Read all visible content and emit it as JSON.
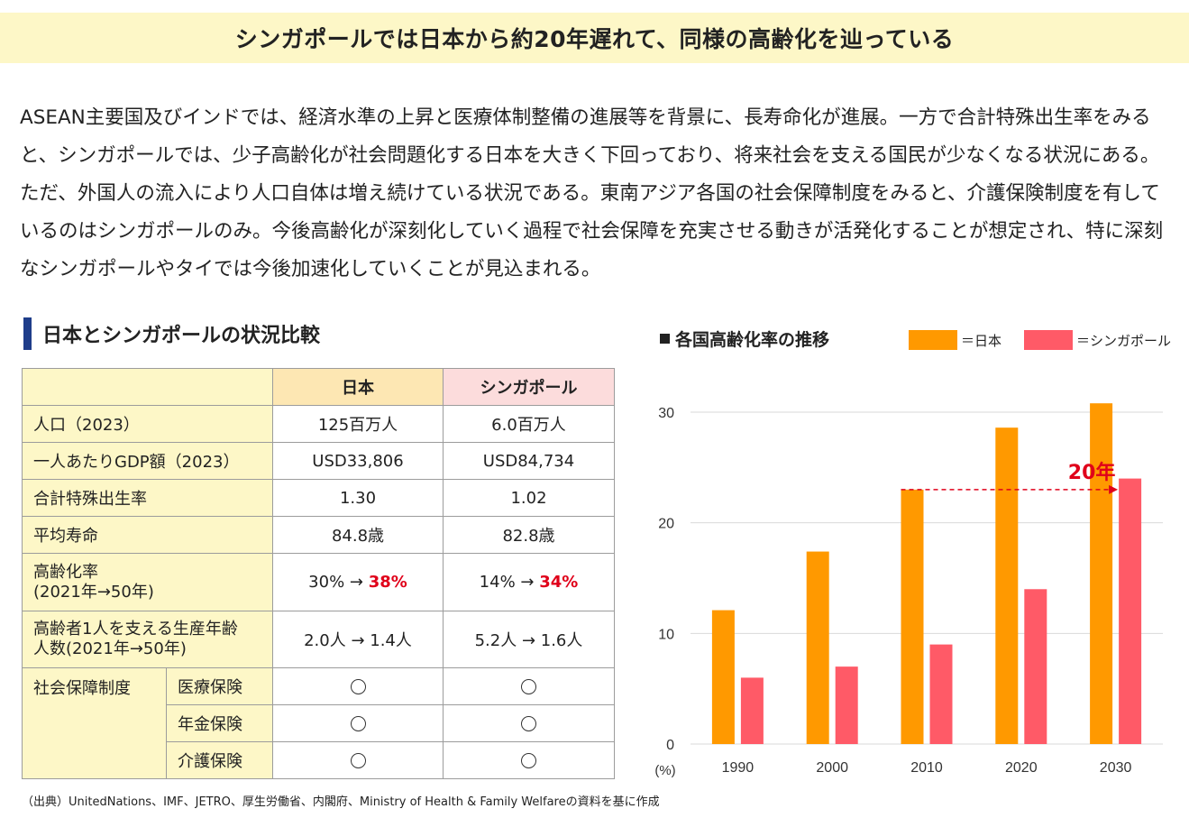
{
  "header": {
    "title": "シンガポールでは日本から約20年遅れて、同様の高齢化を辿っている"
  },
  "intro_text": "ASEAN主要国及びインドでは、経済水準の上昇と医療体制整備の進展等を背景に、長寿命化が進展。一方で合計特殊出生率をみると、シンガポールでは、少子高齢化が社会問題化する日本を大きく下回っており、将来社会を支える国民が少なくなる状況にある。ただ、外国人の流入により人口自体は増え続けている状況である。東南アジア各国の社会保障制度をみると、介護保険制度を有しているのはシンガポールのみ。今後高齢化が深刻化していく過程で社会保障を充実させる動きが活発化することが想定され、特に深刻なシンガポールやタイでは今後加速化していくことが見込まれる。",
  "table": {
    "section_title": "日本とシンガポールの状況比較",
    "col_japan": "日本",
    "col_singapore": "シンガポール",
    "rows": [
      {
        "label": "人口（2023）",
        "japan": "125百万人",
        "singapore": "6.0百万人"
      },
      {
        "label": "一人あたりGDP額（2023）",
        "japan": "USD33,806",
        "singapore": "USD84,734"
      },
      {
        "label": "合計特殊出生率",
        "japan": "1.30",
        "singapore": "1.02"
      },
      {
        "label": "平均寿命",
        "japan": "84.8歳",
        "singapore": "82.8歳"
      }
    ],
    "aging_row": {
      "label_line1": "高齢化率",
      "label_line2": "(2021年→50年)",
      "japan_from": "30% →",
      "japan_to": "38%",
      "singapore_from": "14% →",
      "singapore_to": "34%"
    },
    "support_row": {
      "label_line1": "高齢者1人を支える生産年齢",
      "label_line2": "人数(2021年→50年)",
      "japan": "2.0人 → 1.4人",
      "singapore": "5.2人 → 1.6人"
    },
    "social_security": {
      "label": "社会保障制度",
      "items": [
        {
          "label": "医療保険",
          "japan": "yes",
          "singapore": "yes"
        },
        {
          "label": "年金保険",
          "japan": "yes",
          "singapore": "yes"
        },
        {
          "label": "介護保険",
          "japan": "yes",
          "singapore": "yes"
        }
      ]
    }
  },
  "source_note": "（出典）UnitedNations、IMF、JETRO、厚生労働省、内閣府、Ministry of Health & Family Welfareの資料を基に作成",
  "chart_data": {
    "type": "bar",
    "title": "各国高齢化率の推移",
    "categories": [
      "1990",
      "2000",
      "2010",
      "2020",
      "2030"
    ],
    "series": [
      {
        "name": "＝日本",
        "color": "#ff9900",
        "values": [
          12.1,
          17.4,
          23.0,
          28.6,
          30.8
        ]
      },
      {
        "name": "＝シンガポール",
        "color": "#ff5a67",
        "values": [
          6.0,
          7.0,
          9.0,
          14.0,
          24.0
        ]
      }
    ],
    "ylim": [
      0,
      30
    ],
    "yticks": [
      0,
      10,
      20,
      30
    ],
    "ylabel": "(%)",
    "grid": true,
    "legend_position": "top-right",
    "annotation": {
      "text": "20年",
      "color": "#e0001a"
    }
  }
}
